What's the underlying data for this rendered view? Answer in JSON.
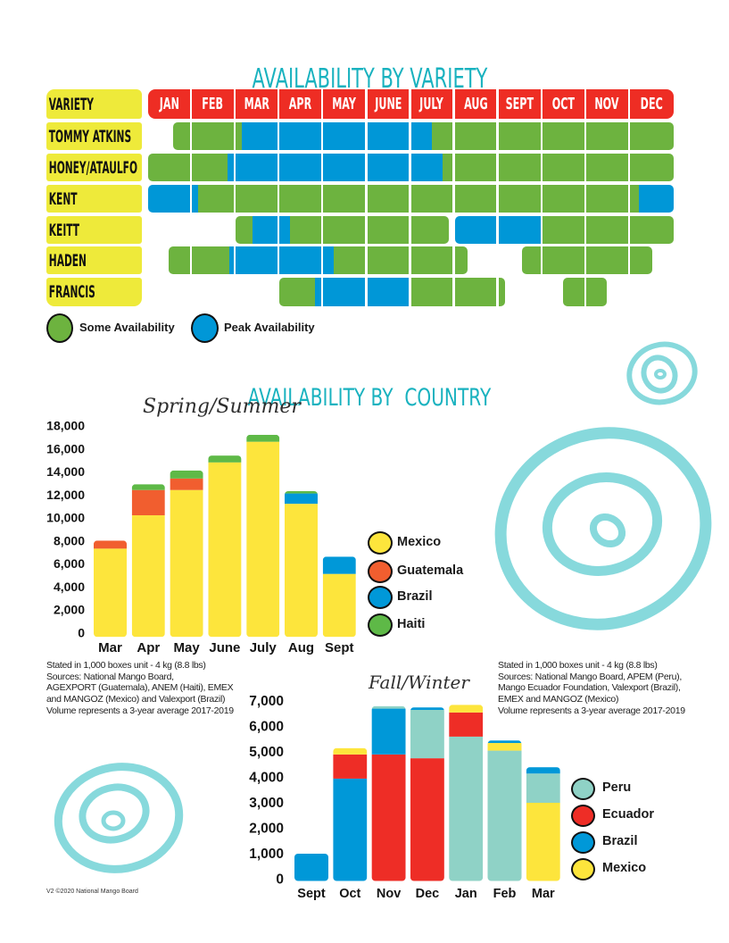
{
  "country_section": {
    "title": "AVAILABILITY BY  COUNTRY"
  },
  "footer": "V2 ©2020 National Mango Board",
  "chart_data": [
    {
      "type": "heatmap",
      "title": "AVAILABILITY BY VARIETY",
      "row_header": "VARIETY",
      "categories": [
        "JAN",
        "FEB",
        "MAR",
        "APR",
        "MAY",
        "JUNE",
        "JULY",
        "AUG",
        "SEPT",
        "OCT",
        "NOV",
        "DEC"
      ],
      "header_color": "#ee2d24",
      "label_color": "#eeea3a",
      "rows": [
        {
          "label": "TOMMY ATKINS",
          "ranges": [
            {
              "from": 0.6,
              "to": 2.15,
              "level": "some"
            },
            {
              "from": 2.15,
              "to": 6.5,
              "level": "peak"
            },
            {
              "from": 6.5,
              "to": 12,
              "level": "some"
            }
          ]
        },
        {
          "label": "HONEY/ATAULFO",
          "ranges": [
            {
              "from": 0,
              "to": 1.85,
              "level": "some"
            },
            {
              "from": 1.85,
              "to": 6.75,
              "level": "peak"
            },
            {
              "from": 6.75,
              "to": 12,
              "level": "some"
            }
          ]
        },
        {
          "label": "KENT",
          "ranges": [
            {
              "from": 0,
              "to": 1.15,
              "level": "peak"
            },
            {
              "from": 1.15,
              "to": 11.2,
              "level": "some"
            },
            {
              "from": 11.2,
              "to": 12,
              "level": "peak"
            }
          ]
        },
        {
          "label": "KEITT",
          "ranges": [
            {
              "from": 2,
              "to": 2.4,
              "level": "some"
            },
            {
              "from": 2.4,
              "to": 3.25,
              "level": "peak"
            },
            {
              "from": 3.25,
              "to": 6.9,
              "level": "some"
            },
            {
              "from": 7,
              "to": 9,
              "level": "peak"
            },
            {
              "from": 9,
              "to": 12,
              "level": "some"
            }
          ]
        },
        {
          "label": "HADEN",
          "ranges": [
            {
              "from": 0.5,
              "to": 1.9,
              "level": "some"
            },
            {
              "from": 1.9,
              "to": 4.25,
              "level": "peak"
            },
            {
              "from": 4.25,
              "to": 7.3,
              "level": "some"
            },
            {
              "from": 8.55,
              "to": 11.5,
              "level": "some"
            }
          ]
        },
        {
          "label": "FRANCIS",
          "ranges": [
            {
              "from": 3,
              "to": 3.85,
              "level": "some"
            },
            {
              "from": 3.85,
              "to": 6,
              "level": "peak"
            },
            {
              "from": 6,
              "to": 8.15,
              "level": "some"
            },
            {
              "from": 9.5,
              "to": 10.5,
              "level": "some"
            }
          ]
        }
      ],
      "legend": [
        {
          "label": "Some Availability",
          "level": "some",
          "color": "#6db33f"
        },
        {
          "label": "Peak Availability",
          "level": "peak",
          "color": "#0097d7"
        }
      ]
    },
    {
      "type": "bar",
      "stacked": true,
      "title": "Spring/Summer",
      "xlabel": "",
      "ylabel": "",
      "categories": [
        "Mar",
        "Apr",
        "May",
        "June",
        "July",
        "Aug",
        "Sept"
      ],
      "ylim": [
        0,
        18000
      ],
      "yticks": [
        0,
        2000,
        4000,
        6000,
        8000,
        10000,
        12000,
        14000,
        16000,
        18000
      ],
      "ytick_labels": [
        "0",
        "2,000",
        "4,000",
        "6,000",
        "8,000",
        "10,000",
        "12,000",
        "14,000",
        "16,000",
        "18,000"
      ],
      "grid": false,
      "legend_position": "right",
      "series": [
        {
          "name": "Mexico",
          "color": "#fde53c",
          "values": [
            7300,
            10200,
            12400,
            14800,
            16600,
            11200,
            5100
          ]
        },
        {
          "name": "Guatemala",
          "color": "#f15e2f",
          "values": [
            700,
            2200,
            1000,
            0,
            0,
            0,
            0
          ]
        },
        {
          "name": "Brazil",
          "color": "#0098d8",
          "values": [
            0,
            0,
            0,
            0,
            0,
            900,
            1500
          ]
        },
        {
          "name": "Haiti",
          "color": "#5eb947",
          "values": [
            0,
            500,
            700,
            600,
            600,
            200,
            0
          ]
        }
      ],
      "notes": [
        "Stated in 1,000 boxes unit - 4 kg (8.8 lbs)",
        "Sources: National Mango Board,",
        "AGEXPORT (Guatemala), ANEM (Haiti), EMEX",
        "and MANGOZ (Mexico) and Valexport (Brazil)",
        "Volume represents a 3-year average 2017-2019"
      ]
    },
    {
      "type": "bar",
      "stacked": true,
      "title": "Fall/Winter",
      "xlabel": "",
      "ylabel": "",
      "categories": [
        "Sept",
        "Oct",
        "Nov",
        "Dec",
        "Jan",
        "Feb",
        "Mar"
      ],
      "ylim": [
        0,
        7000
      ],
      "yticks": [
        0,
        1000,
        2000,
        3000,
        4000,
        5000,
        6000,
        7000
      ],
      "ytick_labels": [
        "0",
        "1,000",
        "2,000",
        "3,000",
        "4,000",
        "5,000",
        "6,000",
        "7,000"
      ],
      "grid": false,
      "legend_position": "right",
      "series": [
        {
          "name": "Peru",
          "color": "#8fd2c6",
          "values": [
            0,
            0,
            100,
            1900,
            5600,
            5050,
            1150
          ]
        },
        {
          "name": "Ecuador",
          "color": "#ee2d26",
          "values": [
            0,
            950,
            4900,
            4750,
            950,
            0,
            0
          ]
        },
        {
          "name": "Brazil",
          "color": "#0098d8",
          "values": [
            1000,
            3950,
            1800,
            100,
            0,
            100,
            250
          ]
        },
        {
          "name": "Mexico",
          "color": "#fde53c",
          "values": [
            0,
            250,
            0,
            0,
            300,
            300,
            3000
          ]
        }
      ],
      "stack_order": [
        [
          "Brazil"
        ],
        [
          "Brazil",
          "Ecuador",
          "Mexico"
        ],
        [
          "Ecuador",
          "Brazil",
          "Peru"
        ],
        [
          "Ecuador",
          "Peru",
          "Brazil"
        ],
        [
          "Peru",
          "Ecuador",
          "Mexico"
        ],
        [
          "Peru",
          "Mexico",
          "Brazil"
        ],
        [
          "Mexico",
          "Peru",
          "Brazil"
        ]
      ],
      "notes": [
        "Stated in 1,000 boxes unit - 4 kg (8.8 lbs)",
        "Sources: National Mango Board, APEM  (Peru),",
        "Mango Ecuador Foundation, Valexport (Brazil),",
        "EMEX and MANGOZ (Mexico)",
        "Volume represents a 3-year average 2017-2019"
      ]
    }
  ]
}
